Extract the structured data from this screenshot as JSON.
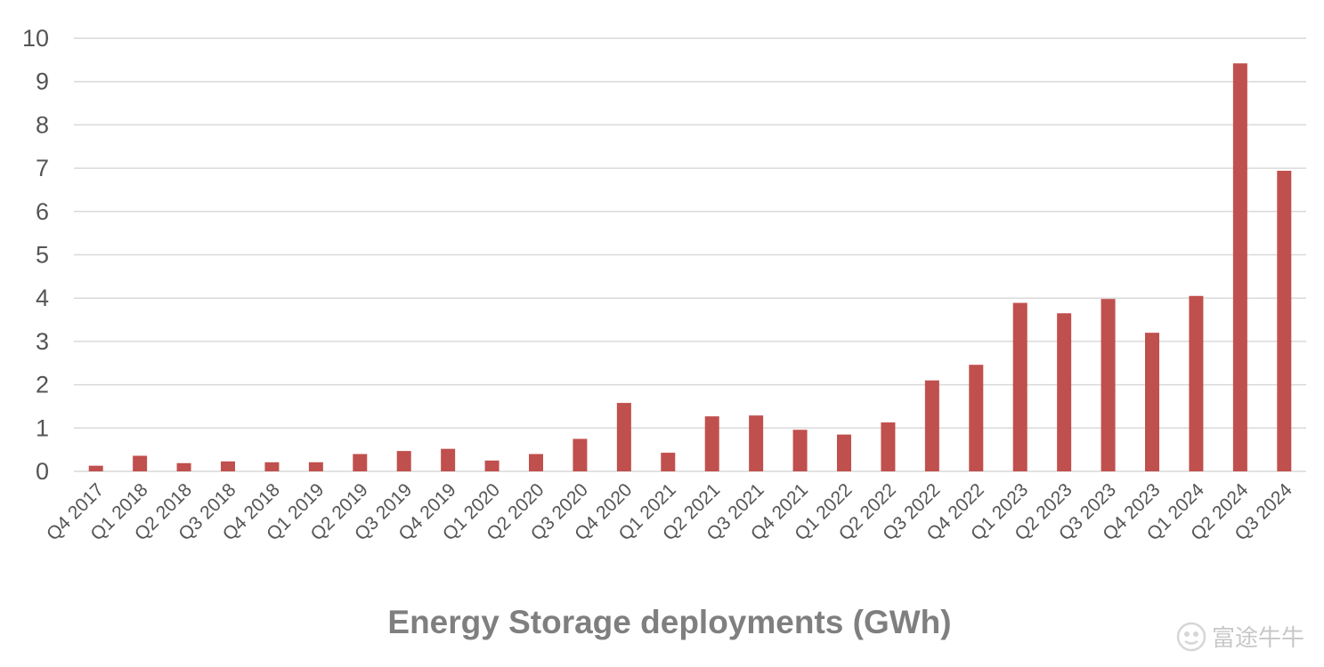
{
  "chart_data": {
    "type": "bar",
    "title": "",
    "xlabel": "Energy Storage deployments (GWh)",
    "ylabel": "",
    "ylim": [
      0,
      10
    ],
    "yticks": [
      0,
      1,
      2,
      3,
      4,
      5,
      6,
      7,
      8,
      9,
      10
    ],
    "grid": true,
    "bar_color": "#c0504d",
    "categories": [
      "Q4 2017",
      "Q1 2018",
      "Q2 2018",
      "Q3 2018",
      "Q4 2018",
      "Q1 2019",
      "Q2 2019",
      "Q3 2019",
      "Q4 2019",
      "Q1 2020",
      "Q2 2020",
      "Q3 2020",
      "Q4 2020",
      "Q1 2021",
      "Q2 2021",
      "Q3 2021",
      "Q4 2021",
      "Q1 2022",
      "Q2 2022",
      "Q3 2022",
      "Q4 2022",
      "Q1 2023",
      "Q2 2023",
      "Q3 2023",
      "Q4 2023",
      "Q1 2024",
      "Q2 2024",
      "Q3 2024"
    ],
    "values": [
      0.13,
      0.36,
      0.19,
      0.23,
      0.21,
      0.21,
      0.4,
      0.47,
      0.52,
      0.25,
      0.4,
      0.75,
      1.58,
      0.43,
      1.27,
      1.29,
      0.96,
      0.85,
      1.13,
      2.1,
      2.46,
      3.89,
      3.65,
      3.98,
      3.2,
      4.05,
      9.42,
      6.94
    ]
  },
  "watermark": {
    "text": "富途牛牛",
    "icon": "futu-logo-icon"
  }
}
